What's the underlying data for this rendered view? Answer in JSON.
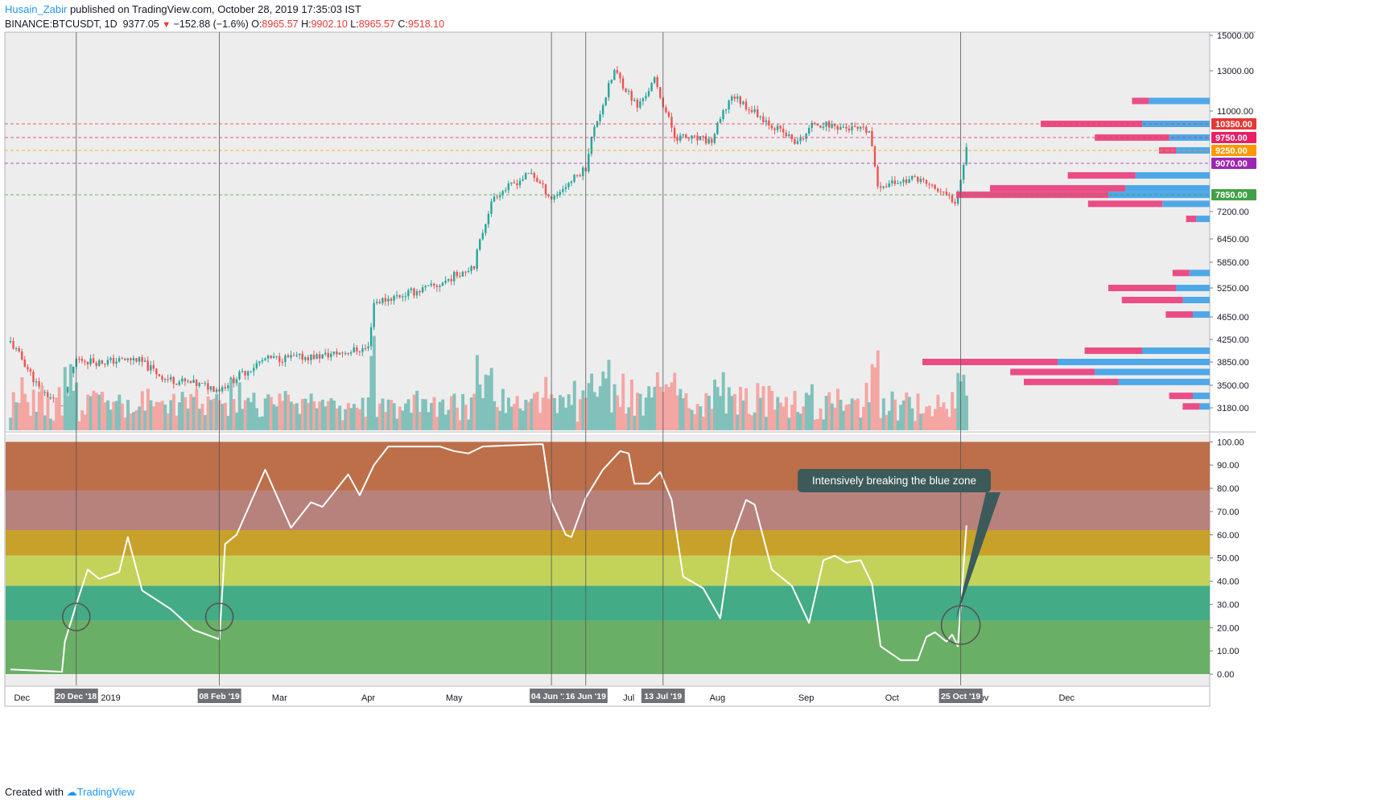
{
  "header": {
    "author": "Husain_Zabir",
    "published_text": "published on TradingView.com, October 28, 2019 17:35:03 IST",
    "symbol": "BINANCE:BTCUSDT, 1D",
    "last": "9377.05",
    "change": "−152.88 (−1.6%)",
    "ohlc_labels": [
      "O:",
      "H:",
      "L:",
      "C:"
    ],
    "ohlc_values": [
      "8965.57",
      "9902.10",
      "8965.57",
      "9518.10"
    ]
  },
  "footer": {
    "created_with": "Created with",
    "brand": "TradingView"
  },
  "annotation": {
    "text": "Intensively breaking the blue zone"
  },
  "colors": {
    "up": "#26a69a",
    "down": "#ef5350",
    "vol_up": "#80c2bb",
    "vol_down": "#f4a6a3",
    "profile_blue": "#4ea8e8",
    "profile_pink": "#ea4d85",
    "zone_top": "#bd6f4a",
    "zone_2": "#b7817c",
    "zone_3": "#c7a12a",
    "zone_4": "#c3d35a",
    "zone_5": "#43ab86",
    "zone_6": "#6aaf66"
  },
  "chart_data": [
    {
      "type": "candlestick",
      "title": "BINANCE:BTCUSDT, 1D",
      "ylim": [
        3000,
        15000
      ],
      "y_ticks": [
        3180,
        3500,
        3850,
        4250,
        4650,
        5250,
        5850,
        6450,
        7200,
        11000,
        13000,
        15000
      ],
      "x_ticks": [
        "Dec",
        "2019",
        "Mar",
        "Apr",
        "May",
        "Jul",
        "Aug",
        "Sep",
        "Oct",
        "Nov",
        "Dec"
      ],
      "price_levels": [
        {
          "value": 10350,
          "label": "10350.00",
          "color": "#e53935"
        },
        {
          "value": 9750,
          "label": "9750.00",
          "color": "#e91e63"
        },
        {
          "value": 9250,
          "label": "9250.00",
          "color": "#ff9800"
        },
        {
          "value": 9070,
          "label": "9070.00",
          "color": "#9c27b0"
        },
        {
          "value": 7850,
          "label": "7850.00",
          "color": "#43a047"
        }
      ],
      "price_path": [
        [
          "2018-11-27",
          4200
        ],
        [
          "2018-12-07",
          3450
        ],
        [
          "2018-12-15",
          3200
        ],
        [
          "2018-12-20",
          3900
        ],
        [
          "2018-12-28",
          3850
        ],
        [
          "2019-01-10",
          3900
        ],
        [
          "2019-01-20",
          3600
        ],
        [
          "2019-02-08",
          3450
        ],
        [
          "2019-02-24",
          3900
        ],
        [
          "2019-03-15",
          3950
        ],
        [
          "2019-04-01",
          4100
        ],
        [
          "2019-04-03",
          4950
        ],
        [
          "2019-04-25",
          5300
        ],
        [
          "2019-05-08",
          5800
        ],
        [
          "2019-05-15",
          7800
        ],
        [
          "2019-05-28",
          8700
        ],
        [
          "2019-06-04",
          7700
        ],
        [
          "2019-06-16",
          8900
        ],
        [
          "2019-06-26",
          13000
        ],
        [
          "2019-07-04",
          11200
        ],
        [
          "2019-07-10",
          12500
        ],
        [
          "2019-07-17",
          9800
        ],
        [
          "2019-07-30",
          9600
        ],
        [
          "2019-08-06",
          11800
        ],
        [
          "2019-08-20",
          10300
        ],
        [
          "2019-08-29",
          9500
        ],
        [
          "2019-09-04",
          10400
        ],
        [
          "2019-09-23",
          10000
        ],
        [
          "2019-09-26",
          8200
        ],
        [
          "2019-10-10",
          8500
        ],
        [
          "2019-10-23",
          7600
        ],
        [
          "2019-10-27",
          9500
        ]
      ],
      "sessions_volume_profile": [
        {
          "price": 11500,
          "up": 0.18,
          "down": 0.05
        },
        {
          "price": 10350,
          "up": 0.2,
          "down": 0.3
        },
        {
          "price": 9750,
          "up": 0.12,
          "down": 0.22
        },
        {
          "price": 9250,
          "up": 0.1,
          "down": 0.05
        },
        {
          "price": 8600,
          "up": 0.22,
          "down": 0.2
        },
        {
          "price": 8100,
          "up": 0.25,
          "down": 0.4
        },
        {
          "price": 7850,
          "up": 0.3,
          "down": 0.45
        },
        {
          "price": 7500,
          "up": 0.14,
          "down": 0.22
        },
        {
          "price": 7000,
          "up": 0.04,
          "down": 0.03
        },
        {
          "price": 5600,
          "up": 0.06,
          "down": 0.05
        },
        {
          "price": 5250,
          "up": 0.1,
          "down": 0.2
        },
        {
          "price": 5000,
          "up": 0.08,
          "down": 0.18
        },
        {
          "price": 4700,
          "up": 0.05,
          "down": 0.08
        },
        {
          "price": 4050,
          "up": 0.2,
          "down": 0.17
        },
        {
          "price": 3850,
          "up": 0.45,
          "down": 0.4
        },
        {
          "price": 3700,
          "up": 0.34,
          "down": 0.25
        },
        {
          "price": 3550,
          "up": 0.27,
          "down": 0.28
        },
        {
          "price": 3350,
          "up": 0.05,
          "down": 0.07
        },
        {
          "price": 3200,
          "up": 0.03,
          "down": 0.05
        }
      ]
    },
    {
      "type": "line",
      "ylim": [
        0,
        100
      ],
      "y_ticks": [
        0,
        10,
        20,
        30,
        40,
        50,
        60,
        70,
        80,
        90,
        100
      ],
      "zones": [
        {
          "from": 79,
          "to": 100,
          "color": "#bd6f4a"
        },
        {
          "from": 62,
          "to": 79,
          "color": "#b7817c"
        },
        {
          "from": 51,
          "to": 62,
          "color": "#c7a12a"
        },
        {
          "from": 38,
          "to": 51,
          "color": "#c3d35a"
        },
        {
          "from": 23,
          "to": 38,
          "color": "#43ab86"
        },
        {
          "from": 0,
          "to": 23,
          "color": "#6aaf66"
        }
      ],
      "series": [
        {
          "values": [
            [
              "2018-11-27",
              2
            ],
            [
              "2018-12-15",
              1
            ],
            [
              "2018-12-16",
              14
            ],
            [
              "2018-12-20",
              30
            ],
            [
              "2018-12-24",
              45
            ],
            [
              "2018-12-28",
              41
            ],
            [
              "2019-01-04",
              44
            ],
            [
              "2019-01-07",
              59
            ],
            [
              "2019-01-12",
              36
            ],
            [
              "2019-01-22",
              28
            ],
            [
              "2019-01-30",
              19
            ],
            [
              "2019-02-08",
              15
            ],
            [
              "2019-02-10",
              56
            ],
            [
              "2019-02-14",
              60
            ],
            [
              "2019-02-24",
              88
            ],
            [
              "2019-03-05",
              63
            ],
            [
              "2019-03-12",
              74
            ],
            [
              "2019-03-16",
              72
            ],
            [
              "2019-03-25",
              86
            ],
            [
              "2019-03-29",
              77
            ],
            [
              "2019-04-03",
              90
            ],
            [
              "2019-04-08",
              98
            ],
            [
              "2019-04-15",
              98
            ],
            [
              "2019-04-26",
              98
            ],
            [
              "2019-05-01",
              96
            ],
            [
              "2019-05-06",
              95
            ],
            [
              "2019-05-11",
              98
            ],
            [
              "2019-05-30",
              99
            ],
            [
              "2019-06-01",
              99
            ],
            [
              "2019-06-04",
              74
            ],
            [
              "2019-06-09",
              60
            ],
            [
              "2019-06-11",
              59
            ],
            [
              "2019-06-16",
              76
            ],
            [
              "2019-06-22",
              88
            ],
            [
              "2019-06-28",
              96
            ],
            [
              "2019-07-01",
              95
            ],
            [
              "2019-07-03",
              82
            ],
            [
              "2019-07-08",
              82
            ],
            [
              "2019-07-12",
              87
            ],
            [
              "2019-07-16",
              75
            ],
            [
              "2019-07-20",
              42
            ],
            [
              "2019-07-27",
              37
            ],
            [
              "2019-08-02",
              24
            ],
            [
              "2019-08-06",
              58
            ],
            [
              "2019-08-11",
              75
            ],
            [
              "2019-08-14",
              73
            ],
            [
              "2019-08-20",
              45
            ],
            [
              "2019-08-27",
              38
            ],
            [
              "2019-09-02",
              22
            ],
            [
              "2019-09-07",
              49
            ],
            [
              "2019-09-11",
              51
            ],
            [
              "2019-09-15",
              48
            ],
            [
              "2019-09-20",
              49
            ],
            [
              "2019-09-24",
              39
            ],
            [
              "2019-09-27",
              12
            ],
            [
              "2019-10-04",
              6
            ],
            [
              "2019-10-10",
              6
            ],
            [
              "2019-10-13",
              16
            ],
            [
              "2019-10-16",
              18
            ],
            [
              "2019-10-20",
              14
            ],
            [
              "2019-10-22",
              17
            ],
            [
              "2019-10-24",
              12
            ],
            [
              "2019-10-27",
              64
            ]
          ]
        }
      ]
    }
  ],
  "vertical_marker_labels": [
    {
      "date": "2018-12-20",
      "label": "20 Dec '18"
    },
    {
      "date": "2019-02-08",
      "label": "08 Feb '19"
    },
    {
      "date": "2019-06-04",
      "label": "04 Jun '19"
    },
    {
      "date": "2019-06-16",
      "label": "16 Jun '19"
    },
    {
      "date": "2019-07-13",
      "label": "13 Jul '19"
    },
    {
      "date": "2019-10-25",
      "label": "25 Oct '19"
    }
  ],
  "circled_dates": [
    "2018-12-20",
    "2019-02-08",
    "2019-10-25"
  ]
}
